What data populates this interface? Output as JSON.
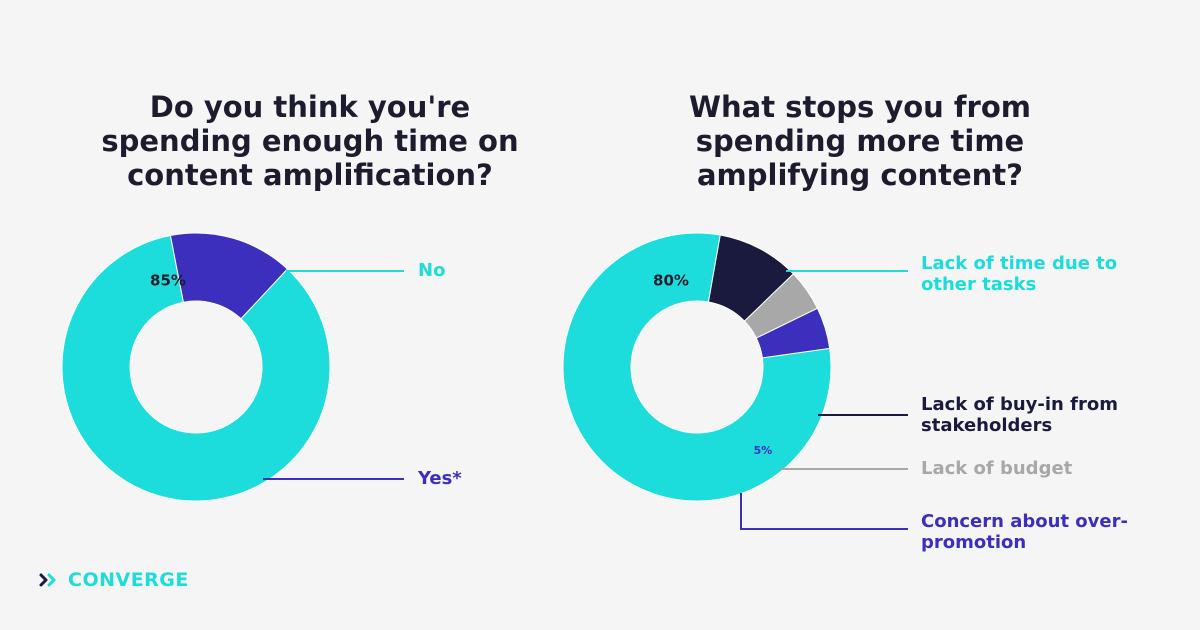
{
  "colors": {
    "cyan": "#1ddcdc",
    "purple": "#3c2fbe",
    "navy": "#1a1a3e",
    "gray": "#a8a8a8",
    "background": "#f5f5f6"
  },
  "logo": {
    "text": "CONVERGE",
    "icon": "double-chevron-icon",
    "color": "#1ddcdc"
  },
  "chart_data": [
    {
      "type": "pie",
      "title": "Do you think you're\nspending enough time on\ncontent amplification?",
      "categories": [
        "No",
        "Yes*"
      ],
      "values": [
        85,
        15
      ],
      "labels": [
        "85%",
        "15%"
      ],
      "colors": [
        "#1ddcdc",
        "#3c2fbe"
      ],
      "legend_colors": [
        "#1ddcdc",
        "#3c2fbe"
      ],
      "label_colors": [
        "#1c1c2e",
        "#1ddcdc"
      ]
    },
    {
      "type": "pie",
      "title": "What stops you from\nspending more time\namplifying content?",
      "categories": [
        "Lack of time due to\nother tasks",
        "Lack of buy-in from\nstakeholders",
        "Lack of budget",
        "Concern about over-\npromotion"
      ],
      "values": [
        80,
        10,
        5,
        5
      ],
      "labels": [
        "80%",
        "10%",
        "5%",
        "5%"
      ],
      "colors": [
        "#1ddcdc",
        "#1a1a3e",
        "#a8a8a8",
        "#3c2fbe"
      ],
      "legend_colors": [
        "#1ddcdc",
        "#1a1a3e",
        "#a8a8a8",
        "#3c2fbe"
      ],
      "label_colors": [
        "#1c1c2e",
        "#1ddcdc",
        "#3c2fbe",
        "#1ddcdc"
      ]
    }
  ]
}
